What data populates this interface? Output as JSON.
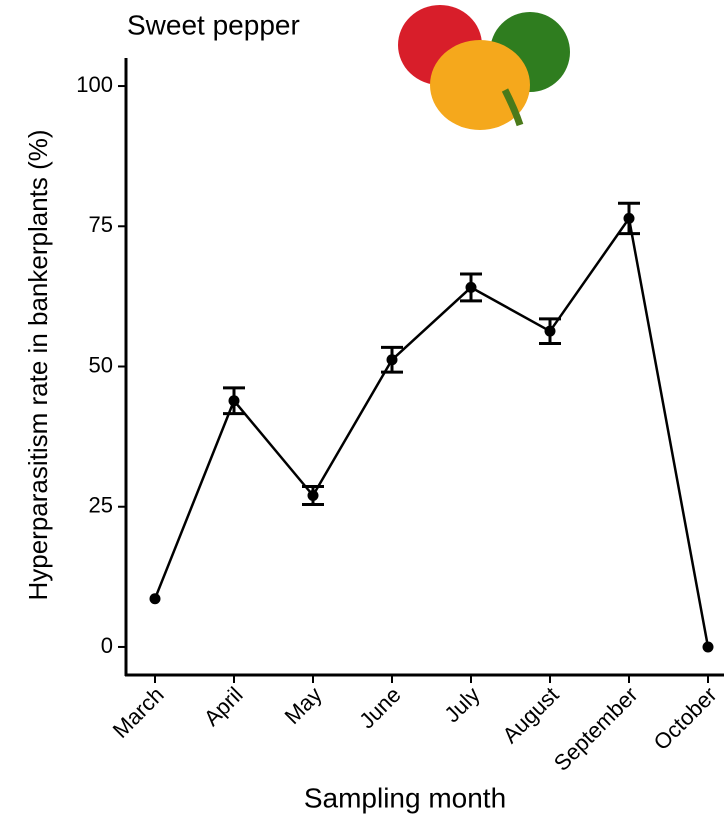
{
  "chart_data": {
    "type": "line",
    "title": "Sweet pepper",
    "x_label": "Sampling month",
    "y_label": "Hyperparasitism rate in bankerplants (%)",
    "categories": [
      "March",
      "April",
      "May",
      "June",
      "July",
      "August",
      "September",
      "October"
    ],
    "values": [
      8.6,
      43.9,
      27.0,
      51.2,
      64.1,
      56.3,
      76.4,
      0
    ],
    "errors": [
      null,
      2.3,
      1.6,
      2.2,
      2.4,
      2.2,
      2.7,
      null
    ],
    "color": "#000000",
    "ylim": [
      -5,
      105
    ],
    "yticks": [
      0,
      25,
      50,
      75,
      100
    ],
    "grid": false
  }
}
